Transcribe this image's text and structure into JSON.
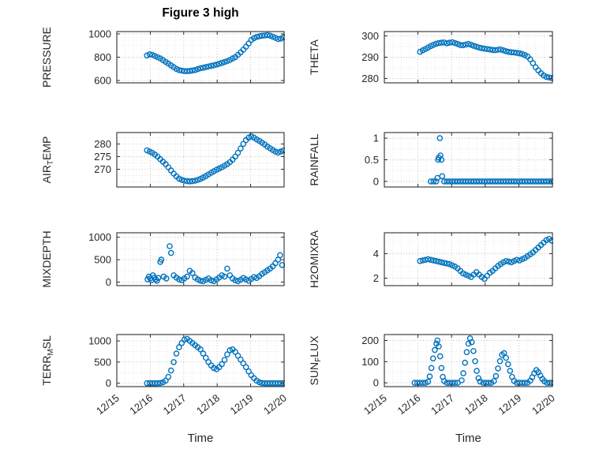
{
  "figure": {
    "title": "Figure 3 high",
    "xlabel": "Time",
    "accent_color": "#0072BD",
    "grid_color": "#bdbdbd",
    "minor_grid_color": "#e4e4e4",
    "axis_color": "#1a1a1a"
  },
  "x_axis": {
    "ticks": [
      0,
      1,
      2,
      3,
      4,
      5
    ],
    "labels": [
      "12/15",
      "12/16",
      "12/17",
      "12/18",
      "12/19",
      "12/20"
    ],
    "title": "Time"
  },
  "chart_data": [
    {
      "type": "scatter",
      "name": "PRESSURE",
      "row": 0,
      "col": 0,
      "ylabel_parts": [
        {
          "t": "PRESSURE",
          "sub": false
        }
      ],
      "ylim": [
        580,
        1020
      ],
      "xlim": [
        0,
        5
      ],
      "yticks": [
        600,
        800,
        1000
      ],
      "ytick_labels": [
        "600",
        "800",
        "1000"
      ],
      "x": [
        0.9,
        0.98,
        1.06,
        1.14,
        1.22,
        1.3,
        1.38,
        1.46,
        1.54,
        1.62,
        1.7,
        1.78,
        1.86,
        1.94,
        2.02,
        2.1,
        2.18,
        2.26,
        2.34,
        2.42,
        2.5,
        2.58,
        2.66,
        2.74,
        2.82,
        2.9,
        2.98,
        3.06,
        3.14,
        3.22,
        3.3,
        3.38,
        3.46,
        3.54,
        3.62,
        3.7,
        3.78,
        3.86,
        3.94,
        4.02,
        4.1,
        4.18,
        4.26,
        4.34,
        4.42,
        4.5,
        4.58,
        4.66,
        4.74,
        4.82,
        4.9,
        4.98
      ],
      "y": [
        815,
        825,
        820,
        810,
        800,
        790,
        775,
        760,
        745,
        730,
        715,
        700,
        690,
        685,
        680,
        680,
        682,
        686,
        690,
        698,
        705,
        710,
        715,
        720,
        726,
        731,
        737,
        744,
        751,
        759,
        766,
        776,
        789,
        801,
        820,
        841,
        864,
        890,
        918,
        948,
        964,
        974,
        980,
        984,
        986,
        990,
        985,
        976,
        966,
        956,
        960,
        970
      ]
    },
    {
      "type": "scatter",
      "name": "THETA",
      "row": 0,
      "col": 1,
      "ylabel_parts": [
        {
          "t": "THETA",
          "sub": false
        }
      ],
      "ylim": [
        278,
        302
      ],
      "xlim": [
        0,
        5
      ],
      "yticks": [
        280,
        290,
        300
      ],
      "ytick_labels": [
        "280",
        "290",
        "300"
      ],
      "x": [
        1.06,
        1.14,
        1.22,
        1.3,
        1.38,
        1.46,
        1.54,
        1.62,
        1.7,
        1.78,
        1.86,
        1.94,
        2.02,
        2.1,
        2.18,
        2.26,
        2.34,
        2.42,
        2.5,
        2.58,
        2.66,
        2.74,
        2.82,
        2.9,
        2.98,
        3.06,
        3.14,
        3.22,
        3.3,
        3.38,
        3.46,
        3.54,
        3.62,
        3.7,
        3.78,
        3.86,
        3.94,
        4.02,
        4.1,
        4.18,
        4.26,
        4.34,
        4.42,
        4.5,
        4.58,
        4.66,
        4.74,
        4.82,
        4.9,
        4.98
      ],
      "y": [
        292.5,
        293.2,
        293.8,
        294.5,
        295.2,
        295.8,
        296.3,
        296.6,
        296.8,
        296.9,
        296.5,
        296.8,
        297.0,
        296.6,
        296.2,
        295.7,
        295.6,
        295.9,
        296.2,
        295.8,
        295.3,
        294.9,
        294.5,
        294.2,
        294.0,
        293.8,
        293.6,
        293.4,
        293.3,
        293.5,
        293.6,
        293.2,
        292.8,
        292.5,
        292.3,
        292.2,
        292.0,
        291.8,
        291.5,
        291.0,
        290.3,
        289.0,
        287.2,
        285.3,
        283.8,
        282.5,
        281.5,
        280.8,
        280.5,
        280.3
      ]
    },
    {
      "type": "scatter",
      "name": "AIR_TEMP",
      "row": 1,
      "col": 0,
      "ylabel_parts": [
        {
          "t": "AIR",
          "sub": false
        },
        {
          "t": "T",
          "sub": true
        },
        {
          "t": "EMP",
          "sub": false
        }
      ],
      "ylim": [
        263,
        284.5
      ],
      "xlim": [
        0,
        5
      ],
      "yticks": [
        270,
        275,
        280
      ],
      "ytick_labels": [
        "270",
        "275",
        "280"
      ],
      "x": [
        0.9,
        0.98,
        1.06,
        1.14,
        1.22,
        1.3,
        1.38,
        1.46,
        1.54,
        1.62,
        1.7,
        1.78,
        1.86,
        1.94,
        2.02,
        2.1,
        2.18,
        2.26,
        2.34,
        2.42,
        2.5,
        2.58,
        2.66,
        2.74,
        2.82,
        2.9,
        2.98,
        3.06,
        3.14,
        3.22,
        3.3,
        3.38,
        3.46,
        3.54,
        3.62,
        3.7,
        3.78,
        3.86,
        3.94,
        4.02,
        4.1,
        4.18,
        4.26,
        4.34,
        4.42,
        4.5,
        4.58,
        4.66,
        4.74,
        4.82,
        4.9,
        4.98
      ],
      "y": [
        277.5,
        277.0,
        276.5,
        275.8,
        275.0,
        274.0,
        273.0,
        272.0,
        270.8,
        269.5,
        268.3,
        267.2,
        266.3,
        265.8,
        265.5,
        265.3,
        265.2,
        265.3,
        265.5,
        265.8,
        266.2,
        266.7,
        267.3,
        268.0,
        268.6,
        269.2,
        269.8,
        270.3,
        270.8,
        271.4,
        272.0,
        272.8,
        273.8,
        275.0,
        276.5,
        278.2,
        280.0,
        281.5,
        282.5,
        283.0,
        282.5,
        281.8,
        281.2,
        280.5,
        279.8,
        279.0,
        278.3,
        277.6,
        277.0,
        276.6,
        277.0,
        277.4
      ]
    },
    {
      "type": "scatter",
      "name": "RAINFALL",
      "row": 1,
      "col": 1,
      "ylabel_parts": [
        {
          "t": "RAINFALL",
          "sub": false
        }
      ],
      "ylim": [
        -0.13,
        1.13
      ],
      "xlim": [
        0,
        5
      ],
      "yticks": [
        0,
        0.5,
        1
      ],
      "ytick_labels": [
        "0",
        "0.5",
        "1"
      ],
      "x": [
        1.38,
        1.46,
        1.54,
        1.58,
        1.6,
        1.62,
        1.65,
        1.67,
        1.7,
        1.72,
        1.78,
        1.86,
        1.94,
        2.02,
        2.1,
        2.18,
        2.26,
        2.34,
        2.42,
        2.5,
        2.58,
        2.66,
        2.74,
        2.82,
        2.9,
        2.98,
        3.06,
        3.14,
        3.22,
        3.3,
        3.38,
        3.46,
        3.54,
        3.62,
        3.7,
        3.78,
        3.86,
        3.94,
        4.02,
        4.1,
        4.18,
        4.26,
        4.34,
        4.42,
        4.5,
        4.58,
        4.66,
        4.74,
        4.82,
        4.9,
        4.98
      ],
      "y": [
        0,
        0,
        0,
        0.08,
        0.5,
        0.55,
        1.0,
        0.6,
        0.5,
        0.12,
        0,
        0,
        0,
        0,
        0,
        0,
        0,
        0,
        0,
        0,
        0,
        0,
        0,
        0,
        0,
        0,
        0,
        0,
        0,
        0,
        0,
        0,
        0,
        0,
        0,
        0,
        0,
        0,
        0,
        0,
        0,
        0,
        0,
        0,
        0,
        0,
        0,
        0,
        0,
        0,
        0
      ]
    },
    {
      "type": "scatter",
      "name": "MIXDEPTH",
      "row": 2,
      "col": 0,
      "ylabel_parts": [
        {
          "t": "MIXDEPTH",
          "sub": false
        }
      ],
      "ylim": [
        -80,
        1100
      ],
      "xlim": [
        0,
        5
      ],
      "yticks": [
        0,
        500,
        1000
      ],
      "ytick_labels": [
        "0",
        "500",
        "1000"
      ],
      "x": [
        0.92,
        0.96,
        1.0,
        1.04,
        1.08,
        1.12,
        1.16,
        1.2,
        1.24,
        1.3,
        1.33,
        1.4,
        1.48,
        1.58,
        1.62,
        1.7,
        1.78,
        1.86,
        1.94,
        2.02,
        2.1,
        2.18,
        2.26,
        2.34,
        2.42,
        2.5,
        2.58,
        2.66,
        2.74,
        2.82,
        2.9,
        2.98,
        3.06,
        3.14,
        3.22,
        3.3,
        3.38,
        3.46,
        3.54,
        3.62,
        3.7,
        3.78,
        3.86,
        3.94,
        4.02,
        4.1,
        4.18,
        4.26,
        4.34,
        4.42,
        4.5,
        4.58,
        4.66,
        4.74,
        4.82,
        4.88,
        4.94
      ],
      "y": [
        60,
        120,
        80,
        40,
        150,
        100,
        60,
        30,
        90,
        450,
        500,
        120,
        80,
        800,
        650,
        150,
        100,
        60,
        40,
        80,
        120,
        250,
        200,
        100,
        60,
        30,
        20,
        50,
        80,
        40,
        20,
        60,
        100,
        150,
        120,
        300,
        150,
        80,
        40,
        20,
        50,
        90,
        60,
        30,
        70,
        110,
        90,
        130,
        180,
        220,
        260,
        300,
        350,
        420,
        500,
        600,
        380
      ]
    },
    {
      "type": "scatter",
      "name": "H2OMIXRA",
      "row": 2,
      "col": 1,
      "ylabel_parts": [
        {
          "t": "H2OMIXRA",
          "sub": false
        }
      ],
      "ylim": [
        1.4,
        5.7
      ],
      "xlim": [
        0,
        5
      ],
      "yticks": [
        2,
        4
      ],
      "ytick_labels": [
        "2",
        "4"
      ],
      "x": [
        1.06,
        1.14,
        1.22,
        1.3,
        1.38,
        1.46,
        1.54,
        1.62,
        1.7,
        1.78,
        1.86,
        1.94,
        2.02,
        2.1,
        2.18,
        2.26,
        2.34,
        2.42,
        2.5,
        2.58,
        2.66,
        2.74,
        2.82,
        2.9,
        2.98,
        3.06,
        3.14,
        3.22,
        3.3,
        3.38,
        3.46,
        3.54,
        3.62,
        3.7,
        3.78,
        3.86,
        3.94,
        4.02,
        4.1,
        4.18,
        4.26,
        4.34,
        4.42,
        4.5,
        4.58,
        4.66,
        4.74,
        4.82,
        4.9,
        4.98
      ],
      "y": [
        3.4,
        3.45,
        3.5,
        3.55,
        3.5,
        3.45,
        3.4,
        3.35,
        3.3,
        3.25,
        3.2,
        3.15,
        3.05,
        2.95,
        2.8,
        2.6,
        2.4,
        2.3,
        2.2,
        2.1,
        2.3,
        2.5,
        2.3,
        2.1,
        1.95,
        2.2,
        2.45,
        2.6,
        2.8,
        3.0,
        3.15,
        3.3,
        3.4,
        3.35,
        3.3,
        3.4,
        3.5,
        3.45,
        3.55,
        3.65,
        3.8,
        3.95,
        4.1,
        4.3,
        4.5,
        4.7,
        4.9,
        5.1,
        5.2,
        5.05
      ]
    },
    {
      "type": "scatter",
      "name": "TERR_MSL",
      "row": 3,
      "col": 0,
      "ylabel_parts": [
        {
          "t": "TERR",
          "sub": false
        },
        {
          "t": "M",
          "sub": true
        },
        {
          "t": "SL",
          "sub": false
        }
      ],
      "ylim": [
        -80,
        1150
      ],
      "xlim": [
        0,
        5
      ],
      "yticks": [
        0,
        500,
        1000
      ],
      "ytick_labels": [
        "0",
        "500",
        "1000"
      ],
      "x": [
        0.9,
        0.98,
        1.06,
        1.14,
        1.22,
        1.3,
        1.38,
        1.46,
        1.54,
        1.62,
        1.7,
        1.78,
        1.86,
        1.94,
        2.02,
        2.1,
        2.18,
        2.26,
        2.34,
        2.42,
        2.5,
        2.58,
        2.66,
        2.74,
        2.82,
        2.9,
        2.98,
        3.06,
        3.14,
        3.22,
        3.3,
        3.38,
        3.46,
        3.54,
        3.62,
        3.7,
        3.78,
        3.86,
        3.94,
        4.02,
        4.1,
        4.18,
        4.26,
        4.34,
        4.42,
        4.5,
        4.58,
        4.66,
        4.74,
        4.82,
        4.9,
        4.98
      ],
      "y": [
        0,
        0,
        0,
        0,
        0,
        5,
        20,
        60,
        150,
        300,
        500,
        700,
        850,
        950,
        1030,
        1050,
        1000,
        950,
        900,
        850,
        800,
        700,
        600,
        500,
        420,
        360,
        330,
        380,
        450,
        550,
        680,
        780,
        800,
        740,
        650,
        560,
        470,
        380,
        280,
        190,
        120,
        60,
        25,
        5,
        0,
        0,
        0,
        0,
        0,
        0,
        0,
        0
      ]
    },
    {
      "type": "scatter",
      "name": "SUN_FLUX",
      "row": 3,
      "col": 1,
      "ylabel_parts": [
        {
          "t": "SUN",
          "sub": false
        },
        {
          "t": "F",
          "sub": true
        },
        {
          "t": "LUX",
          "sub": false
        }
      ],
      "ylim": [
        -18,
        228
      ],
      "xlim": [
        0,
        5
      ],
      "yticks": [
        0,
        100,
        200
      ],
      "ytick_labels": [
        "0",
        "100",
        "200"
      ],
      "x": [
        0.9,
        0.98,
        1.06,
        1.14,
        1.22,
        1.3,
        1.35,
        1.4,
        1.45,
        1.5,
        1.55,
        1.58,
        1.62,
        1.66,
        1.7,
        1.74,
        1.78,
        1.86,
        1.94,
        2.02,
        2.1,
        2.18,
        2.3,
        2.35,
        2.4,
        2.45,
        2.5,
        2.55,
        2.6,
        2.65,
        2.7,
        2.75,
        2.8,
        2.85,
        2.94,
        3.02,
        3.1,
        3.18,
        3.26,
        3.32,
        3.38,
        3.44,
        3.5,
        3.56,
        3.62,
        3.68,
        3.74,
        3.8,
        3.86,
        3.94,
        4.02,
        4.1,
        4.18,
        4.26,
        4.34,
        4.4,
        4.46,
        4.52,
        4.58,
        4.64,
        4.7,
        4.76,
        4.84,
        4.92,
        4.98
      ],
      "y": [
        0,
        0,
        0,
        0,
        0,
        5,
        30,
        70,
        115,
        155,
        185,
        200,
        172,
        125,
        70,
        28,
        8,
        0,
        0,
        0,
        0,
        0,
        12,
        45,
        95,
        145,
        185,
        210,
        192,
        150,
        102,
        56,
        22,
        6,
        0,
        0,
        0,
        0,
        8,
        32,
        68,
        102,
        132,
        140,
        118,
        88,
        56,
        28,
        9,
        0,
        0,
        0,
        0,
        0,
        10,
        26,
        45,
        60,
        50,
        34,
        18,
        7,
        0,
        0,
        0
      ]
    }
  ]
}
